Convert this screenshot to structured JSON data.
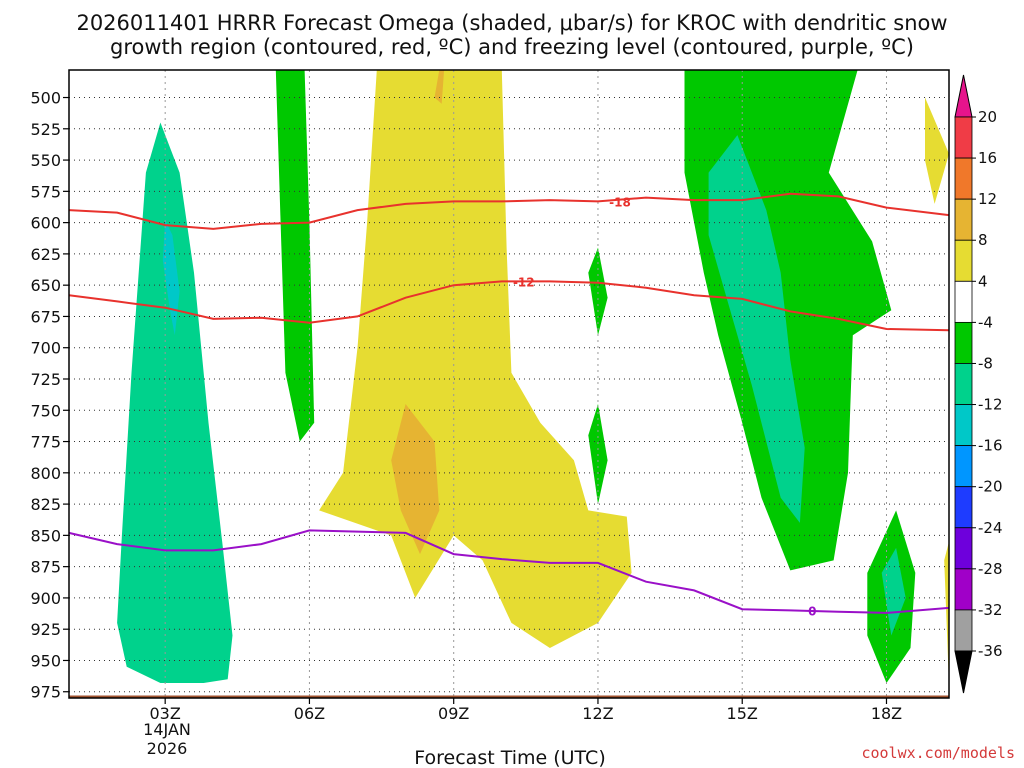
{
  "chart_data": {
    "type": "time-height contour",
    "title_line1": "2026011401 HRRR Forecast Omega (shaded, μbar/s) for KROC with dendritic snow",
    "title_line2": "growth region (contoured, red, ºC) and freezing level (contoured, purple, ºC)",
    "xlabel": "Forecast Time (UTC)",
    "x_range_hours": [
      1,
      19.3
    ],
    "x_ticks": [
      {
        "hour": 3,
        "label": "03Z"
      },
      {
        "hour": 6,
        "label": "06Z"
      },
      {
        "hour": 9,
        "label": "09Z"
      },
      {
        "hour": 12,
        "label": "12Z"
      },
      {
        "hour": 15,
        "label": "15Z"
      },
      {
        "hour": 18,
        "label": "18Z"
      }
    ],
    "date_label_line1": "14JAN",
    "date_label_line2": "2026",
    "y_ticks": [
      500,
      525,
      550,
      575,
      600,
      625,
      650,
      675,
      700,
      725,
      750,
      775,
      800,
      825,
      850,
      875,
      900,
      925,
      950,
      975
    ],
    "y_range_mb": [
      478,
      980
    ],
    "colorbar": {
      "levels": [
        20,
        16,
        12,
        8,
        4,
        -4,
        -8,
        -12,
        -16,
        -20,
        -24,
        -28,
        -32,
        -36
      ],
      "colors": [
        "#f03c46",
        "#f0782a",
        "#e6b432",
        "#e6dc32",
        "#ffffff",
        "#00c800",
        "#00d28c",
        "#00c8c8",
        "#0096ff",
        "#1e3cff",
        "#6e00dc",
        "#a000c8",
        "#a0a0a0"
      ],
      "top_arrow_color": "#e6148c",
      "bottom_arrow_color": "#000000"
    },
    "red_contours": [
      {
        "label": "-18",
        "points": [
          [
            1,
            590
          ],
          [
            2,
            592
          ],
          [
            3,
            602
          ],
          [
            4,
            605
          ],
          [
            5,
            601
          ],
          [
            6,
            600
          ],
          [
            7,
            590
          ],
          [
            8,
            585
          ],
          [
            9,
            583
          ],
          [
            10,
            583
          ],
          [
            11,
            582
          ],
          [
            12,
            583
          ],
          [
            13,
            580
          ],
          [
            14,
            582
          ],
          [
            15,
            582
          ],
          [
            16,
            577
          ],
          [
            17,
            579
          ],
          [
            18,
            588
          ],
          [
            19.3,
            594
          ]
        ]
      },
      {
        "label": "-12",
        "points": [
          [
            1,
            658
          ],
          [
            2,
            663
          ],
          [
            3,
            668
          ],
          [
            4,
            677
          ],
          [
            5,
            676
          ],
          [
            6,
            680
          ],
          [
            7,
            675
          ],
          [
            8,
            660
          ],
          [
            9,
            650
          ],
          [
            10,
            647
          ],
          [
            11,
            647
          ],
          [
            12,
            648
          ],
          [
            13,
            652
          ],
          [
            14,
            658
          ],
          [
            15,
            661
          ],
          [
            16,
            671
          ],
          [
            17,
            677
          ],
          [
            18,
            685
          ],
          [
            19.3,
            686
          ]
        ]
      }
    ],
    "purple_contours": [
      {
        "label": "0",
        "points": [
          [
            1,
            848
          ],
          [
            2,
            857
          ],
          [
            3,
            862
          ],
          [
            4,
            862
          ],
          [
            5,
            857
          ],
          [
            6,
            846
          ],
          [
            7,
            847
          ],
          [
            8,
            848
          ],
          [
            9,
            865
          ],
          [
            10,
            869
          ],
          [
            11,
            872
          ],
          [
            12,
            872
          ],
          [
            13,
            887
          ],
          [
            14,
            894
          ],
          [
            15,
            909
          ],
          [
            16,
            910
          ],
          [
            17,
            911
          ],
          [
            18,
            912
          ],
          [
            19.3,
            908
          ]
        ]
      }
    ],
    "omega_regions": [
      {
        "value": -8,
        "points": [
          [
            2.1,
            850
          ],
          [
            2.3,
            720
          ],
          [
            2.6,
            560
          ],
          [
            2.9,
            520
          ],
          [
            3.3,
            560
          ],
          [
            3.6,
            640
          ],
          [
            3.9,
            760
          ],
          [
            4.2,
            860
          ],
          [
            4.4,
            930
          ],
          [
            4.3,
            965
          ],
          [
            3.8,
            968
          ],
          [
            2.9,
            968
          ],
          [
            2.2,
            955
          ],
          [
            2.0,
            920
          ]
        ]
      },
      {
        "value": -12,
        "points": [
          [
            3.0,
            598
          ],
          [
            3.15,
            610
          ],
          [
            3.3,
            655
          ],
          [
            3.2,
            690
          ],
          [
            3.1,
            670
          ],
          [
            2.95,
            630
          ]
        ]
      },
      {
        "value": 4,
        "points": [
          [
            7.4,
            478
          ],
          [
            10.0,
            478
          ],
          [
            10.1,
            620
          ],
          [
            10.2,
            720
          ],
          [
            10.8,
            760
          ],
          [
            11.5,
            790
          ],
          [
            11.8,
            830
          ],
          [
            12.6,
            835
          ],
          [
            12.7,
            880
          ],
          [
            12.0,
            920
          ],
          [
            11.0,
            940
          ],
          [
            10.2,
            920
          ],
          [
            9.6,
            870
          ],
          [
            9.0,
            850
          ],
          [
            8.2,
            900
          ],
          [
            7.7,
            850
          ],
          [
            6.2,
            830
          ],
          [
            6.7,
            800
          ],
          [
            7.0,
            700
          ],
          [
            7.2,
            600
          ]
        ]
      },
      {
        "value": 8,
        "points": [
          [
            8.0,
            745
          ],
          [
            8.6,
            775
          ],
          [
            8.7,
            830
          ],
          [
            8.3,
            865
          ],
          [
            7.9,
            830
          ],
          [
            7.7,
            790
          ]
        ]
      },
      {
        "value": 8,
        "points": [
          [
            8.7,
            478
          ],
          [
            8.8,
            478
          ],
          [
            8.75,
            505
          ],
          [
            8.6,
            500
          ]
        ]
      },
      {
        "value": -4,
        "points": [
          [
            5.3,
            478
          ],
          [
            5.9,
            478
          ],
          [
            6.0,
            600
          ],
          [
            6.1,
            760
          ],
          [
            5.8,
            775
          ],
          [
            5.5,
            720
          ],
          [
            5.4,
            600
          ]
        ]
      },
      {
        "value": -4,
        "points": [
          [
            11.8,
            640
          ],
          [
            12.0,
            620
          ],
          [
            12.2,
            660
          ],
          [
            12.0,
            690
          ]
        ]
      },
      {
        "value": -4,
        "points": [
          [
            11.8,
            770
          ],
          [
            12.0,
            745
          ],
          [
            12.2,
            790
          ],
          [
            12.0,
            825
          ]
        ]
      },
      {
        "value": -4,
        "points": [
          [
            13.8,
            478
          ],
          [
            17.4,
            478
          ],
          [
            16.8,
            560
          ],
          [
            17.7,
            615
          ],
          [
            18.1,
            670
          ],
          [
            17.3,
            690
          ],
          [
            17.2,
            800
          ],
          [
            16.9,
            870
          ],
          [
            16.0,
            878
          ],
          [
            15.4,
            820
          ],
          [
            15.0,
            760
          ],
          [
            14.5,
            690
          ],
          [
            14.2,
            640
          ],
          [
            13.8,
            560
          ]
        ]
      },
      {
        "value": -8,
        "points": [
          [
            14.3,
            560
          ],
          [
            14.9,
            530
          ],
          [
            15.5,
            590
          ],
          [
            15.8,
            640
          ],
          [
            16.0,
            710
          ],
          [
            16.3,
            780
          ],
          [
            16.2,
            840
          ],
          [
            15.8,
            820
          ],
          [
            15.2,
            730
          ],
          [
            14.6,
            650
          ],
          [
            14.3,
            610
          ]
        ]
      },
      {
        "value": -4,
        "points": [
          [
            17.6,
            880
          ],
          [
            18.2,
            830
          ],
          [
            18.6,
            880
          ],
          [
            18.5,
            940
          ],
          [
            18.0,
            968
          ],
          [
            17.6,
            930
          ]
        ]
      },
      {
        "value": -8,
        "points": [
          [
            17.9,
            880
          ],
          [
            18.2,
            860
          ],
          [
            18.4,
            900
          ],
          [
            18.1,
            930
          ]
        ]
      },
      {
        "value": 4,
        "points": [
          [
            18.8,
            500
          ],
          [
            19.3,
            545
          ],
          [
            19.0,
            585
          ],
          [
            18.8,
            550
          ]
        ]
      },
      {
        "value": 4,
        "points": [
          [
            19.2,
            870
          ],
          [
            19.3,
            855
          ],
          [
            19.3,
            970
          ]
        ]
      }
    ],
    "ground_level_mb": 978
  },
  "credit": "coolwx.com/models"
}
